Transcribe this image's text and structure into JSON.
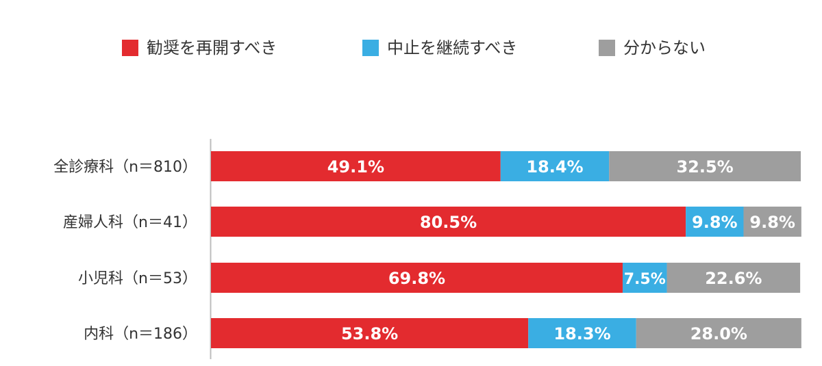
{
  "chart_data": {
    "type": "bar",
    "orientation": "horizontal",
    "stacked": true,
    "percent_stacked": true,
    "categories": [
      "全診療科（n＝810）",
      "産婦人科（n＝41）",
      "小児科（n＝53）",
      "内科（n＝186）"
    ],
    "series": [
      {
        "name": "勧奨を再開すべき",
        "color": "#e32b2f",
        "values": [
          49.1,
          80.5,
          69.8,
          53.8
        ],
        "labels": [
          "49.1%",
          "80.5%",
          "69.8%",
          "53.8%"
        ]
      },
      {
        "name": "中止を継続すべき",
        "color": "#3aaee3",
        "values": [
          18.4,
          9.8,
          7.5,
          18.3
        ],
        "labels": [
          "18.4%",
          "9.8%",
          "7.5%",
          "18.3%"
        ]
      },
      {
        "name": "分からない",
        "color": "#9e9e9e",
        "values": [
          32.5,
          9.8,
          22.6,
          28.0
        ],
        "labels": [
          "32.5%",
          "9.8%",
          "22.6%",
          "28.0%"
        ]
      }
    ],
    "xlim": [
      0,
      100
    ],
    "legend_position": "top",
    "grid": false
  }
}
